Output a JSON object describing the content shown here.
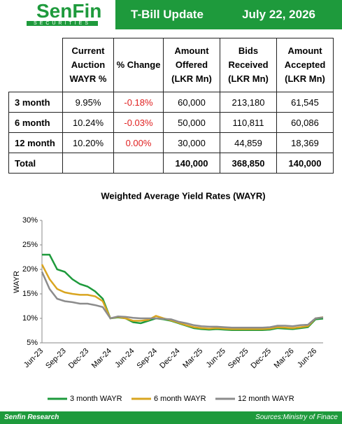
{
  "header": {
    "logo": "SenFin",
    "logo_sub": "SECURITIES",
    "title": "T-Bill Update",
    "date": "July 22, 2026"
  },
  "table": {
    "columns": [
      "Current Auction WAYR %",
      "% Change",
      "Amount Offered (LKR Mn)",
      "Bids Received (LKR Mn)",
      "Amount Accepted (LKR Mn)"
    ],
    "rows": [
      [
        "3 month",
        "9.95%",
        "-0.18%",
        "60,000",
        "213,180",
        "61,545"
      ],
      [
        "6 month",
        "10.24%",
        "-0.03%",
        "50,000",
        "110,811",
        "60,086"
      ],
      [
        "12 month",
        "10.20%",
        "0.00%",
        "30,000",
        "44,859",
        "18,369"
      ],
      [
        "Total",
        null,
        null,
        "140,000",
        "368,850",
        "140,000"
      ]
    ]
  },
  "chart_data": {
    "type": "line",
    "title": "Weighted Average Yield Rates (WAYR)",
    "y_label": "WAYR",
    "categories": [
      "Jun-23",
      null,
      null,
      "Sep-23",
      null,
      null,
      "Dec-23",
      null,
      null,
      "Mar-24",
      null,
      null,
      "Jun-24",
      null,
      null,
      "Sep-24",
      null,
      null,
      "Dec-24",
      null,
      null,
      "Mar-25",
      null,
      null,
      "Jun-25",
      null,
      null,
      "Sep-25",
      null,
      null,
      "Dec-25",
      null,
      null,
      "Mar-26",
      null,
      null,
      "Jun-26",
      null
    ],
    "ylim": [
      5,
      30
    ],
    "yticks": [
      {
        "value": 5,
        "label": "5%"
      },
      {
        "value": 10,
        "label": "10%"
      },
      {
        "value": 15,
        "label": "15%"
      },
      {
        "value": 20,
        "label": "20%"
      },
      {
        "value": 25,
        "label": "25%"
      },
      {
        "value": 30,
        "label": "30%"
      }
    ],
    "series": [
      {
        "name": "3 month WAYR",
        "color": "#1e9a3c",
        "values": [
          23,
          23,
          20,
          19.5,
          18,
          17,
          16.5,
          15.5,
          14,
          10,
          10.2,
          10,
          9.2,
          9,
          9.5,
          10,
          9.8,
          9.5,
          9,
          8.5,
          8,
          7.8,
          7.7,
          7.8,
          7.7,
          7.6,
          7.6,
          7.6,
          7.6,
          7.6,
          7.7,
          8,
          7.9,
          7.8,
          8,
          8.2,
          9.8,
          9.95
        ]
      },
      {
        "name": "6 month WAYR",
        "color": "#d9a520",
        "values": [
          21,
          18,
          16,
          15.3,
          15,
          14.8,
          14.8,
          14.5,
          13.5,
          10,
          10.3,
          10,
          9.5,
          9.5,
          9.7,
          10.5,
          10,
          9.6,
          9.1,
          8.6,
          8.2,
          8,
          7.9,
          8,
          7.9,
          7.8,
          7.8,
          7.8,
          7.8,
          7.8,
          7.9,
          8.2,
          8.1,
          8,
          8.2,
          8.4,
          10,
          10.24
        ]
      },
      {
        "name": "12 month WAYR",
        "color": "#8c8c8c",
        "values": [
          19.5,
          16,
          14,
          13.5,
          13.3,
          13,
          13,
          12.7,
          12.3,
          10,
          10.4,
          10.3,
          10.1,
          10,
          10,
          10,
          9.9,
          9.8,
          9.3,
          9,
          8.6,
          8.4,
          8.3,
          8.3,
          8.2,
          8.1,
          8.1,
          8.1,
          8.1,
          8.1,
          8.2,
          8.5,
          8.5,
          8.4,
          8.6,
          8.7,
          10,
          10.2
        ]
      }
    ]
  },
  "footer": {
    "left": "Senfin Research",
    "right": "Sources:Ministry of Finace"
  }
}
